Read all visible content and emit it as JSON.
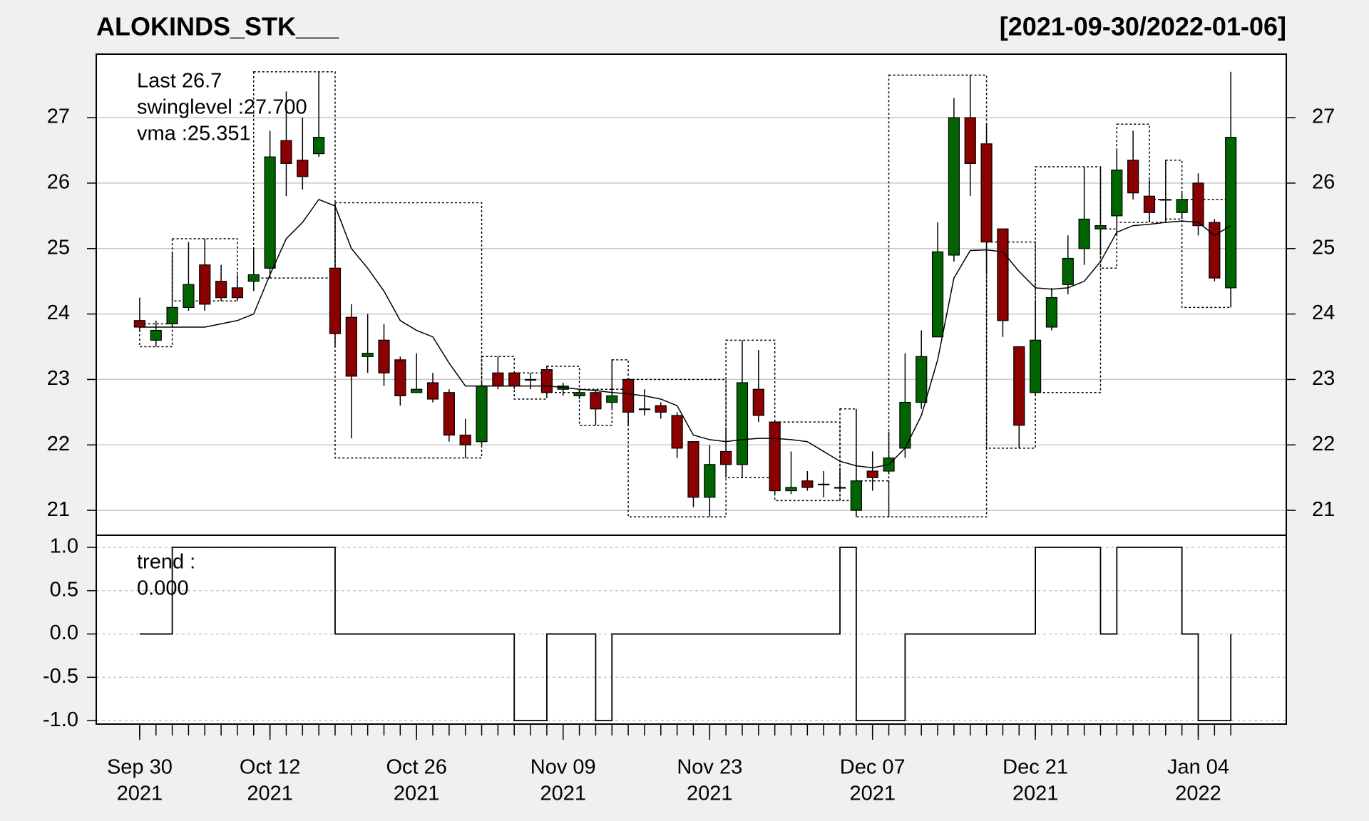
{
  "chart_data": [
    {
      "type": "candlestick",
      "title": "ALOKINDS_STK___",
      "subtitle": "[2021-09-30/2022-01-06]",
      "up_color": "#006400",
      "down_color": "#8b0000",
      "open": [
        23.9,
        23.6,
        23.85,
        24.1,
        24.75,
        24.5,
        24.4,
        24.5,
        24.7,
        26.65,
        26.35,
        26.45,
        24.7,
        23.95,
        23.35,
        23.6,
        23.3,
        22.8,
        22.95,
        22.8,
        22.15,
        22.05,
        23.1,
        23.1,
        23.0,
        23.15,
        22.85,
        22.75,
        22.8,
        22.65,
        23.0,
        22.55,
        22.6,
        22.45,
        22.05,
        21.2,
        21.9,
        21.7,
        22.85,
        22.35,
        21.3,
        21.45,
        21.4,
        21.35,
        21.0,
        21.6,
        21.6,
        21.95,
        22.65,
        23.65,
        24.9,
        27.0,
        26.6,
        25.3,
        23.5,
        22.8,
        23.8,
        24.45,
        25.0,
        25.3,
        25.5,
        26.35,
        25.8,
        25.75,
        25.55,
        26.0,
        25.4,
        24.4
      ],
      "high": [
        24.25,
        23.9,
        24.95,
        25.1,
        25.15,
        24.75,
        24.6,
        25.0,
        26.8,
        27.4,
        27.0,
        27.7,
        25.7,
        24.15,
        24.0,
        23.85,
        23.35,
        23.4,
        23.1,
        22.85,
        22.4,
        22.95,
        23.35,
        23.1,
        23.1,
        23.2,
        22.95,
        22.85,
        22.85,
        23.3,
        23.0,
        22.85,
        22.65,
        22.5,
        22.05,
        22.0,
        22.25,
        23.6,
        23.45,
        22.35,
        21.9,
        21.6,
        21.6,
        21.65,
        22.55,
        21.9,
        22.2,
        23.4,
        23.75,
        25.4,
        27.3,
        27.65,
        26.9,
        25.3,
        23.5,
        24.2,
        24.4,
        25.2,
        26.25,
        26.25,
        26.5,
        26.8,
        26.05,
        26.35,
        25.85,
        26.15,
        25.45,
        27.7
      ],
      "low": [
        23.75,
        23.5,
        23.8,
        24.05,
        24.05,
        24.2,
        24.2,
        24.35,
        24.55,
        25.8,
        25.9,
        26.4,
        23.5,
        22.1,
        23.1,
        22.9,
        22.6,
        22.8,
        22.65,
        22.05,
        21.8,
        22.0,
        22.85,
        22.85,
        22.85,
        22.75,
        22.75,
        22.7,
        22.3,
        22.55,
        22.3,
        22.45,
        22.4,
        21.8,
        21.05,
        20.9,
        21.5,
        21.5,
        22.35,
        21.25,
        21.25,
        21.3,
        21.2,
        21.3,
        20.9,
        21.3,
        21.55,
        21.8,
        22.55,
        23.65,
        24.8,
        25.8,
        24.6,
        23.65,
        21.95,
        22.75,
        23.75,
        24.3,
        24.75,
        24.9,
        25.2,
        25.75,
        25.4,
        25.4,
        25.45,
        25.2,
        24.5,
        24.1
      ],
      "close": [
        23.8,
        23.75,
        24.1,
        24.45,
        24.15,
        24.25,
        24.25,
        24.6,
        26.4,
        26.3,
        26.1,
        26.7,
        23.7,
        23.05,
        23.4,
        23.1,
        22.75,
        22.85,
        22.7,
        22.15,
        22.0,
        22.9,
        22.9,
        22.9,
        23.0,
        22.8,
        22.9,
        22.8,
        22.55,
        22.75,
        22.5,
        22.55,
        22.5,
        21.95,
        21.2,
        21.7,
        21.7,
        22.95,
        22.45,
        21.3,
        21.35,
        21.35,
        21.4,
        21.35,
        21.45,
        21.5,
        21.8,
        22.65,
        23.35,
        24.95,
        27.0,
        26.3,
        25.1,
        23.9,
        22.3,
        23.6,
        24.25,
        24.85,
        25.45,
        25.35,
        26.2,
        25.85,
        25.55,
        25.75,
        25.75,
        25.35,
        24.55,
        26.7
      ],
      "vma": [
        23.8,
        23.8,
        23.8,
        23.8,
        23.8,
        23.85,
        23.9,
        24.0,
        24.6,
        25.15,
        25.4,
        25.75,
        25.65,
        25.0,
        24.7,
        24.35,
        23.9,
        23.75,
        23.65,
        23.25,
        22.9,
        22.9,
        22.9,
        22.9,
        22.9,
        22.9,
        22.88,
        22.85,
        22.83,
        22.8,
        22.78,
        22.75,
        22.7,
        22.6,
        22.15,
        22.08,
        22.05,
        22.08,
        22.1,
        22.1,
        22.08,
        22.05,
        21.9,
        21.75,
        21.68,
        21.65,
        21.7,
        21.95,
        22.45,
        23.3,
        24.55,
        24.97,
        24.98,
        24.95,
        24.65,
        24.4,
        24.38,
        24.4,
        24.5,
        24.8,
        25.25,
        25.35,
        25.37,
        25.4,
        25.42,
        25.4,
        25.2,
        25.35
      ],
      "swinglevel_boxes": [
        {
          "start": 0,
          "end": 2,
          "low": 23.5,
          "high": 23.85
        },
        {
          "start": 2,
          "end": 6,
          "low": 24.2,
          "high": 25.15
        },
        {
          "start": 7,
          "end": 12,
          "low": 24.55,
          "high": 27.7
        },
        {
          "start": 12,
          "end": 21,
          "low": 21.8,
          "high": 25.7
        },
        {
          "start": 21,
          "end": 23,
          "low": 22.9,
          "high": 23.35
        },
        {
          "start": 23,
          "end": 25,
          "low": 22.7,
          "high": 23.1
        },
        {
          "start": 25,
          "end": 27,
          "low": 22.8,
          "high": 23.2
        },
        {
          "start": 27,
          "end": 29,
          "low": 22.3,
          "high": 22.85
        },
        {
          "start": 29,
          "end": 30,
          "low": 22.85,
          "high": 23.3
        },
        {
          "start": 30,
          "end": 36,
          "low": 20.9,
          "high": 23.0
        },
        {
          "start": 36,
          "end": 39,
          "low": 21.5,
          "high": 23.6
        },
        {
          "start": 39,
          "end": 43,
          "low": 21.15,
          "high": 22.35
        },
        {
          "start": 43,
          "end": 44,
          "low": 21.15,
          "high": 22.55
        },
        {
          "start": 44,
          "end": 46,
          "low": 20.9,
          "high": 21.45
        },
        {
          "start": 46,
          "end": 52,
          "low": 20.9,
          "high": 27.65
        },
        {
          "start": 52,
          "end": 55,
          "low": 21.95,
          "high": 25.1
        },
        {
          "start": 55,
          "end": 59,
          "low": 22.8,
          "high": 26.25
        },
        {
          "start": 59,
          "end": 60,
          "low": 24.7,
          "high": 25.3
        },
        {
          "start": 60,
          "end": 62,
          "low": 25.4,
          "high": 26.9
        },
        {
          "start": 62,
          "end": 63,
          "low": 25.4,
          "high": 25.75
        },
        {
          "start": 63,
          "end": 64,
          "low": 25.45,
          "high": 26.35
        },
        {
          "start": 64,
          "end": 67,
          "low": 24.1,
          "high": 25.75
        }
      ],
      "legend": [
        "Last 26.7",
        "swinglevel :27.700",
        "vma :25.351"
      ],
      "legend_colors": [
        "#006400",
        "#000000",
        "#000000"
      ],
      "ylim": [
        20.62,
        27.97
      ],
      "yticks": [
        21,
        22,
        23,
        24,
        25,
        26,
        27
      ],
      "grid": true
    },
    {
      "type": "step",
      "legend": [
        "trend :",
        "0.000"
      ],
      "values": [
        0,
        0,
        1,
        1,
        1,
        1,
        1,
        1,
        1,
        1,
        1,
        1,
        0,
        0,
        0,
        0,
        0,
        0,
        0,
        0,
        0,
        0,
        0,
        -1,
        -1,
        0,
        0,
        0,
        -1,
        0,
        0,
        0,
        0,
        0,
        0,
        0,
        0,
        0,
        0,
        0,
        0,
        0,
        0,
        1,
        -1,
        -1,
        -1,
        0,
        0,
        0,
        0,
        0,
        0,
        0,
        0,
        1,
        1,
        1,
        1,
        0,
        1,
        1,
        1,
        1,
        0,
        -1,
        -1,
        0
      ],
      "ylim": [
        -1.04,
        1.14
      ],
      "yticks": [
        {
          "value": 1,
          "label": "1.0"
        },
        {
          "value": 0.5,
          "label": "0.5"
        },
        {
          "value": 0,
          "label": "0.0"
        },
        {
          "value": -0.5,
          "label": "-0.5"
        },
        {
          "value": -1,
          "label": "-1.0"
        }
      ],
      "grid": true,
      "xticks": [
        {
          "value": 0,
          "label": "Sep 30",
          "year": "2021"
        },
        {
          "value": 8,
          "label": "Oct 12",
          "year": "2021"
        },
        {
          "value": 17,
          "label": "Oct 26",
          "year": "2021"
        },
        {
          "value": 26,
          "label": "Nov 09",
          "year": "2021"
        },
        {
          "value": 35,
          "label": "Nov 23",
          "year": "2021"
        },
        {
          "value": 45,
          "label": "Dec 07",
          "year": "2021"
        },
        {
          "value": 55,
          "label": "Dec 21",
          "year": "2021"
        },
        {
          "value": 65,
          "label": "Jan 04",
          "year": "2022"
        }
      ]
    }
  ]
}
